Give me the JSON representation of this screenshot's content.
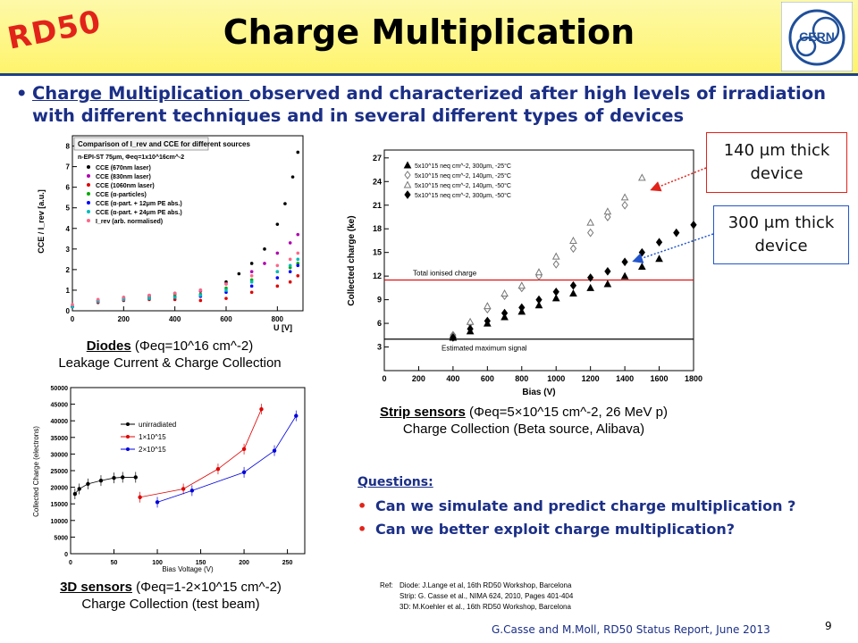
{
  "header": {
    "logo_text": "RD50",
    "title": "Charge Multiplication",
    "cern_logo": "CERN",
    "colors": {
      "band": "#fff46a",
      "rule": "#1f3f8a",
      "logo_red": "#e2231a",
      "text_blue": "#1b2f87"
    }
  },
  "main_bullet": {
    "lead": "Charge Multiplication ",
    "rest": "observed and characterized after high levels of irradiation with different techniques and in several different types of devices"
  },
  "diodes_chart": {
    "legend_title": "Comparison of I_rev and CCE for different sources",
    "condition": "n-EPI-ST 75μm, Φeq=1x10^16cm^-2",
    "legend": [
      "CCE (670nm laser)",
      "CCE (830nm laser)",
      "CCE (1060nm laser)",
      "CCE (α-particles)",
      "CCE (α-part. + 12μm PE abs.)",
      "CCE (α-part. + 24μm PE abs.)",
      "I_rev (arb. normalised)"
    ],
    "ylabel": "CCE / I_rev [a.u.]",
    "xlabel": "U [V]",
    "xticks": [
      "0",
      "200",
      "400",
      "600",
      "800"
    ],
    "yticks": [
      "0",
      "1",
      "2",
      "3",
      "4",
      "5",
      "6",
      "7",
      "8"
    ]
  },
  "diodes_caption": {
    "line1_label": "Diodes",
    "line1_rest": "(Φeq=10^16 cm^-2)",
    "line2": "Leakage Current & Charge Collection"
  },
  "strip_chart": {
    "legend": [
      "5x10^15 neq cm^-2, 300μm, -25°C",
      "5x10^15 neq cm^-2, 140μm, -25°C",
      "5x10^15 neq cm^-2, 140μm, -50°C",
      "5x10^15 neq cm^-2, 300μm, -50°C"
    ],
    "ionised_label": "Total ionised charge",
    "estimated_label": "Estimated maximum signal",
    "ylabel": "Collected charge (ke)",
    "xlabel": "Bias (V)",
    "xticks": [
      "0",
      "200",
      "400",
      "600",
      "800",
      "1000",
      "1200",
      "1400",
      "1600",
      "1800"
    ],
    "yticks": [
      "3",
      "6",
      "9",
      "12",
      "15",
      "18",
      "21",
      "24",
      "27"
    ]
  },
  "strip_caption": {
    "line1_label": "Strip sensors",
    "line1_rest": "(Φeq=5×10^15 cm^-2, 26 MeV p)",
    "line2": "Charge Collection (Beta source, Alibava)"
  },
  "callout_140": {
    "line1": "140 μm thick",
    "line2": "device"
  },
  "callout_300": {
    "line1": "300 μm thick",
    "line2": "device"
  },
  "sensor3d_chart": {
    "legend": [
      "unirradiated",
      "1×10^15",
      "2×10^15"
    ],
    "ylabel": "Collected Charge (electrons)",
    "xlabel": "Bias Voltage (V)",
    "xticks": [
      "0",
      "50",
      "100",
      "150",
      "200",
      "250"
    ],
    "yticks": [
      "0",
      "5000",
      "10000",
      "15000",
      "20000",
      "25000",
      "30000",
      "35000",
      "40000",
      "45000",
      "50000"
    ]
  },
  "sensor3d_caption": {
    "line1_label": "3D sensors",
    "line1_rest": "(Φeq=1-2×10^15 cm^-2)",
    "line2": "Charge Collection (test beam)"
  },
  "questions": {
    "title": "Questions:",
    "items": [
      "Can we simulate and predict charge multiplication ?",
      "Can we better exploit charge multiplication?"
    ]
  },
  "references": {
    "label": "Ref:",
    "lines": [
      "Diode: J.Lange et al, 16th RD50 Workshop, Barcelona",
      "Strip: G. Casse et al., NIMA 624, 2010, Pages 401-404",
      "3D: M.Koehler et al., 16th RD50 Workshop, Barcelona"
    ]
  },
  "footer": {
    "text": "G.Casse and M.Moll, RD50 Status Report, June 2013",
    "page": "9"
  },
  "chart_data": [
    {
      "type": "scatter",
      "title": "Comparison of I_rev and CCE for different sources",
      "xlabel": "U [V]",
      "ylabel": "CCE / I_rev [a.u.]",
      "xlim": [
        0,
        900
      ],
      "ylim": [
        0,
        8.5
      ],
      "series": [
        {
          "name": "CCE (670nm laser)",
          "color": "#000000",
          "x": [
            0,
            100,
            200,
            300,
            400,
            500,
            600,
            650,
            700,
            750,
            800,
            830,
            860,
            880
          ],
          "y": [
            0.2,
            0.5,
            0.65,
            0.75,
            0.85,
            1.0,
            1.4,
            1.8,
            2.3,
            3.0,
            4.2,
            5.2,
            6.5,
            7.7
          ]
        },
        {
          "name": "CCE (830nm laser)",
          "color": "#b000b0",
          "x": [
            0,
            100,
            200,
            300,
            400,
            500,
            600,
            700,
            750,
            800,
            850,
            880
          ],
          "y": [
            0.2,
            0.5,
            0.6,
            0.7,
            0.8,
            0.95,
            1.3,
            1.9,
            2.3,
            2.8,
            3.3,
            3.7
          ]
        },
        {
          "name": "CCE (1060nm laser)",
          "color": "#e00000",
          "x": [
            0,
            100,
            200,
            300,
            400,
            500,
            600,
            700,
            800,
            850,
            880
          ],
          "y": [
            0.2,
            0.4,
            0.5,
            0.55,
            0.55,
            0.5,
            0.6,
            0.9,
            1.2,
            1.4,
            1.7
          ]
        },
        {
          "name": "CCE (α-particles)",
          "color": "#00aa00",
          "x": [
            0,
            100,
            200,
            300,
            400,
            500,
            600,
            700,
            800,
            850,
            880
          ],
          "y": [
            0.2,
            0.5,
            0.6,
            0.65,
            0.7,
            0.8,
            1.1,
            1.5,
            1.9,
            2.1,
            2.3
          ]
        },
        {
          "name": "CCE (α-part. + 12μm PE abs.)",
          "color": "#0000ff",
          "x": [
            0,
            100,
            200,
            300,
            400,
            500,
            600,
            700,
            800,
            850,
            880
          ],
          "y": [
            0.2,
            0.45,
            0.55,
            0.6,
            0.65,
            0.7,
            0.9,
            1.2,
            1.6,
            1.9,
            2.2
          ]
        },
        {
          "name": "CCE (α-part. + 24μm PE abs.)",
          "color": "#00bbbb",
          "x": [
            0,
            100,
            200,
            300,
            400,
            500,
            600,
            700,
            800,
            850,
            880
          ],
          "y": [
            0.2,
            0.45,
            0.55,
            0.6,
            0.65,
            0.75,
            1.0,
            1.4,
            1.9,
            2.2,
            2.5
          ]
        },
        {
          "name": "I_rev (arb. normalised)",
          "color": "#ff6688",
          "x": [
            0,
            100,
            200,
            300,
            400,
            500,
            600,
            700,
            800,
            850,
            880
          ],
          "y": [
            0.3,
            0.55,
            0.65,
            0.75,
            0.85,
            1.0,
            1.3,
            1.7,
            2.2,
            2.5,
            2.8
          ]
        }
      ]
    },
    {
      "type": "scatter",
      "xlabel": "Bias (V)",
      "ylabel": "Collected charge (ke)",
      "xlim": [
        0,
        1800
      ],
      "ylim": [
        0,
        28
      ],
      "hlines": [
        {
          "label": "Total ionised charge",
          "y": 11.5,
          "color": "#e00000"
        },
        {
          "label": "Estimated maximum signal",
          "y": 4.0,
          "color": "#000000"
        }
      ],
      "series": [
        {
          "name": "5x10^15 neq cm^-2, 300μm, -25°C",
          "marker": "triangle-filled",
          "x": [
            400,
            500,
            600,
            700,
            800,
            900,
            1000,
            1100,
            1200,
            1300,
            1400,
            1500,
            1600
          ],
          "y": [
            4.2,
            5.0,
            6.0,
            6.8,
            7.5,
            8.3,
            9.2,
            9.8,
            10.5,
            11.0,
            12.0,
            13.2,
            14.2
          ]
        },
        {
          "name": "5x10^15 neq cm^-2, 140μm, -25°C",
          "marker": "diamond-open",
          "x": [
            400,
            500,
            600,
            700,
            800,
            900,
            1000,
            1100,
            1200,
            1300,
            1400
          ],
          "y": [
            4.5,
            6.0,
            7.8,
            9.5,
            10.5,
            12.0,
            13.5,
            15.5,
            17.5,
            19.5,
            21.0
          ]
        },
        {
          "name": "5x10^15 neq cm^-2, 140μm, -50°C",
          "marker": "triangle-open",
          "x": [
            400,
            500,
            600,
            700,
            800,
            900,
            1000,
            1100,
            1200,
            1300,
            1400,
            1500
          ],
          "y": [
            4.5,
            6.2,
            8.2,
            9.8,
            10.8,
            12.5,
            14.5,
            16.5,
            18.8,
            20.2,
            22.0,
            24.5
          ]
        },
        {
          "name": "5x10^15 neq cm^-2, 300μm, -50°C",
          "marker": "diamond-filled",
          "x": [
            400,
            500,
            600,
            700,
            800,
            900,
            1000,
            1100,
            1200,
            1300,
            1400,
            1500,
            1600,
            1700,
            1800
          ],
          "y": [
            4.2,
            5.3,
            6.3,
            7.3,
            8.0,
            9.0,
            10.0,
            10.8,
            11.8,
            12.6,
            13.8,
            15.0,
            16.3,
            17.5,
            18.5
          ]
        }
      ]
    },
    {
      "type": "line",
      "xlabel": "Bias Voltage (V)",
      "ylabel": "Collected Charge (electrons)",
      "xlim": [
        0,
        270
      ],
      "ylim": [
        0,
        50000
      ],
      "series": [
        {
          "name": "unirradiated",
          "color": "#000000",
          "x": [
            5,
            10,
            20,
            35,
            50,
            60,
            75
          ],
          "y": [
            18000,
            19500,
            21000,
            22000,
            22800,
            23000,
            23000
          ]
        },
        {
          "name": "1×10^15",
          "color": "#e00000",
          "x": [
            80,
            130,
            170,
            200,
            220
          ],
          "y": [
            17000,
            19500,
            25500,
            31500,
            43500
          ]
        },
        {
          "name": "2×10^15",
          "color": "#0000dd",
          "x": [
            100,
            140,
            200,
            235,
            260
          ],
          "y": [
            15500,
            19000,
            24500,
            31000,
            41500
          ]
        }
      ]
    }
  ]
}
